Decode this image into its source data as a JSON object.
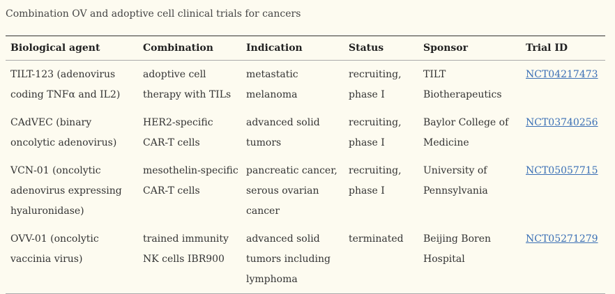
{
  "caption": "Combination OV and adoptive cell clinical trials for cancers",
  "columns": [
    "Biological agent",
    "Combination",
    "Indication",
    "Status",
    "Sponsor",
    "Trial ID"
  ],
  "rows": [
    [
      "TILT-123 (adenovirus coding TNFα and IL2)",
      "adoptive cell therapy with TILs",
      "metastatic melanoma",
      "recruiting, phase I",
      "TILT Biotherapeutics",
      "NCT04217473"
    ],
    [
      "CAdVEC (binary oncolytic adenovirus)",
      "HER2-specific CAR-T cells",
      "advanced solid tumors",
      "recruiting, phase I",
      "Baylor College of Medicine",
      "NCT03740256"
    ],
    [
      "VCN-01 (oncolytic adenovirus expressing hyaluronidase)",
      "mesothelin-specific CAR-T cells",
      "pancreatic cancer, serous ovarian cancer",
      "recruiting, phase I",
      "University of Pennsylvania",
      "NCT05057715"
    ],
    [
      "OVV-01 (oncolytic vaccinia virus)",
      "trained immunity NK cells IBR900",
      "advanced solid tumors including lymphoma",
      "terminated",
      "Beijing Boren Hospital",
      "NCT05271279"
    ]
  ],
  "colors": {
    "background": "#fdfbf0",
    "link": "#3a6fb5"
  }
}
